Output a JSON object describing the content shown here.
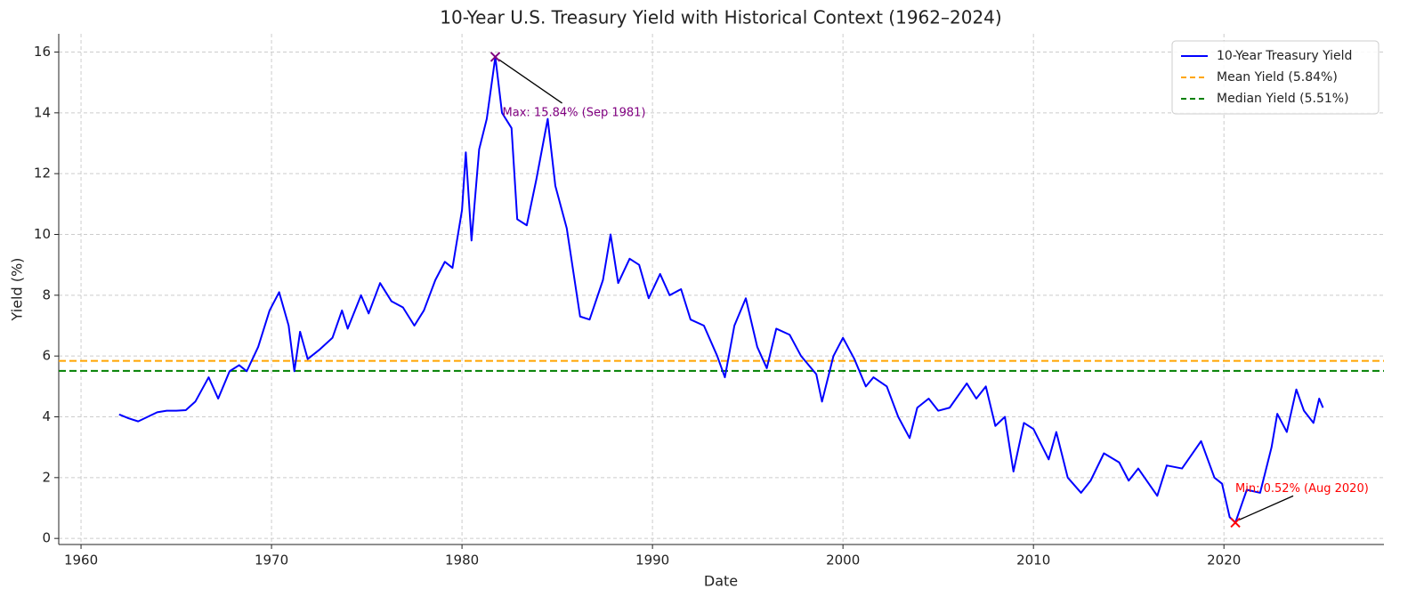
{
  "chart_data": {
    "type": "line",
    "title": "10-Year U.S. Treasury Yield with Historical Context (1962–2024)",
    "xlabel": "Date",
    "ylabel": "Yield (%)",
    "x": [
      1962.0,
      1962.5,
      1963.0,
      1963.5,
      1964.0,
      1964.5,
      1965.0,
      1965.5,
      1966.0,
      1966.7,
      1967.2,
      1967.8,
      1968.3,
      1968.7,
      1969.3,
      1969.9,
      1970.4,
      1970.9,
      1971.2,
      1971.5,
      1971.9,
      1972.5,
      1973.2,
      1973.7,
      1974.0,
      1974.7,
      1975.1,
      1975.7,
      1976.3,
      1976.9,
      1977.5,
      1978.0,
      1978.6,
      1979.1,
      1979.5,
      1980.0,
      1980.2,
      1980.5,
      1980.9,
      1981.3,
      1981.75,
      1982.1,
      1982.6,
      1982.9,
      1983.4,
      1983.9,
      1984.5,
      1984.9,
      1985.5,
      1986.2,
      1986.7,
      1987.4,
      1987.8,
      1988.2,
      1988.8,
      1989.3,
      1989.8,
      1990.4,
      1990.9,
      1991.5,
      1992.0,
      1992.7,
      1993.4,
      1993.8,
      1994.3,
      1994.9,
      1995.5,
      1996.0,
      1996.5,
      1997.2,
      1997.8,
      1998.6,
      1998.9,
      1999.5,
      2000.0,
      2000.6,
      2001.2,
      2001.6,
      2002.3,
      2002.9,
      2003.5,
      2003.9,
      2004.5,
      2005.0,
      2005.6,
      2006.5,
      2007.0,
      2007.5,
      2008.0,
      2008.5,
      2008.95,
      2009.5,
      2010.0,
      2010.8,
      2011.2,
      2011.8,
      2012.5,
      2013.0,
      2013.7,
      2014.5,
      2015.0,
      2015.5,
      2016.5,
      2017.0,
      2017.8,
      2018.8,
      2019.5,
      2019.9,
      2020.3,
      2020.6,
      2021.2,
      2021.9,
      2022.5,
      2022.8,
      2023.3,
      2023.8,
      2024.2,
      2024.7,
      2025.0,
      2025.2
    ],
    "series": [
      {
        "name": "10-Year Treasury Yield",
        "color": "#0000ff",
        "values": [
          4.08,
          3.95,
          3.85,
          4.0,
          4.15,
          4.2,
          4.2,
          4.22,
          4.5,
          5.3,
          4.6,
          5.5,
          5.7,
          5.5,
          6.3,
          7.5,
          8.1,
          7.0,
          5.5,
          6.8,
          5.9,
          6.2,
          6.6,
          7.5,
          6.9,
          8.0,
          7.4,
          8.4,
          7.8,
          7.6,
          7.0,
          7.5,
          8.5,
          9.1,
          8.9,
          10.8,
          12.7,
          9.8,
          12.8,
          13.8,
          15.84,
          14.0,
          13.5,
          10.5,
          10.3,
          11.8,
          13.8,
          11.6,
          10.2,
          7.3,
          7.2,
          8.5,
          10.0,
          8.4,
          9.2,
          9.0,
          7.9,
          8.7,
          8.0,
          8.2,
          7.2,
          7.0,
          6.0,
          5.3,
          7.0,
          7.9,
          6.3,
          5.6,
          6.9,
          6.7,
          6.0,
          5.4,
          4.5,
          6.0,
          6.6,
          5.9,
          5.0,
          5.3,
          5.0,
          4.0,
          3.3,
          4.3,
          4.6,
          4.2,
          4.3,
          5.1,
          4.6,
          5.0,
          3.7,
          4.0,
          2.2,
          3.8,
          3.6,
          2.6,
          3.5,
          2.0,
          1.5,
          1.9,
          2.8,
          2.5,
          1.9,
          2.3,
          1.4,
          2.4,
          2.3,
          3.2,
          2.0,
          1.8,
          0.7,
          0.52,
          1.6,
          1.5,
          3.0,
          4.1,
          3.5,
          4.9,
          4.2,
          3.8,
          4.6,
          4.3
        ]
      }
    ],
    "hlines": [
      {
        "name": "Mean Yield (5.84%)",
        "value": 5.84,
        "color": "orange"
      },
      {
        "name": "Median Yield (5.51%)",
        "value": 5.51,
        "color": "green"
      }
    ],
    "annotations": [
      {
        "text": "Max: 15.84% (Sep 1981)",
        "x": 1981.75,
        "y": 15.84,
        "color": "purple"
      },
      {
        "text": "Min: 0.52% (Aug 2020)",
        "x": 2020.6,
        "y": 0.52,
        "color": "red"
      }
    ],
    "xlim": [
      1958.83,
      2028.4
    ],
    "ylim": [
      -0.2,
      16.6
    ],
    "xticks": [
      1960,
      1970,
      1980,
      1990,
      2000,
      2010,
      2020
    ],
    "yticks": [
      0,
      2,
      4,
      6,
      8,
      10,
      12,
      14,
      16
    ],
    "grid": true,
    "legend": "upper right"
  }
}
